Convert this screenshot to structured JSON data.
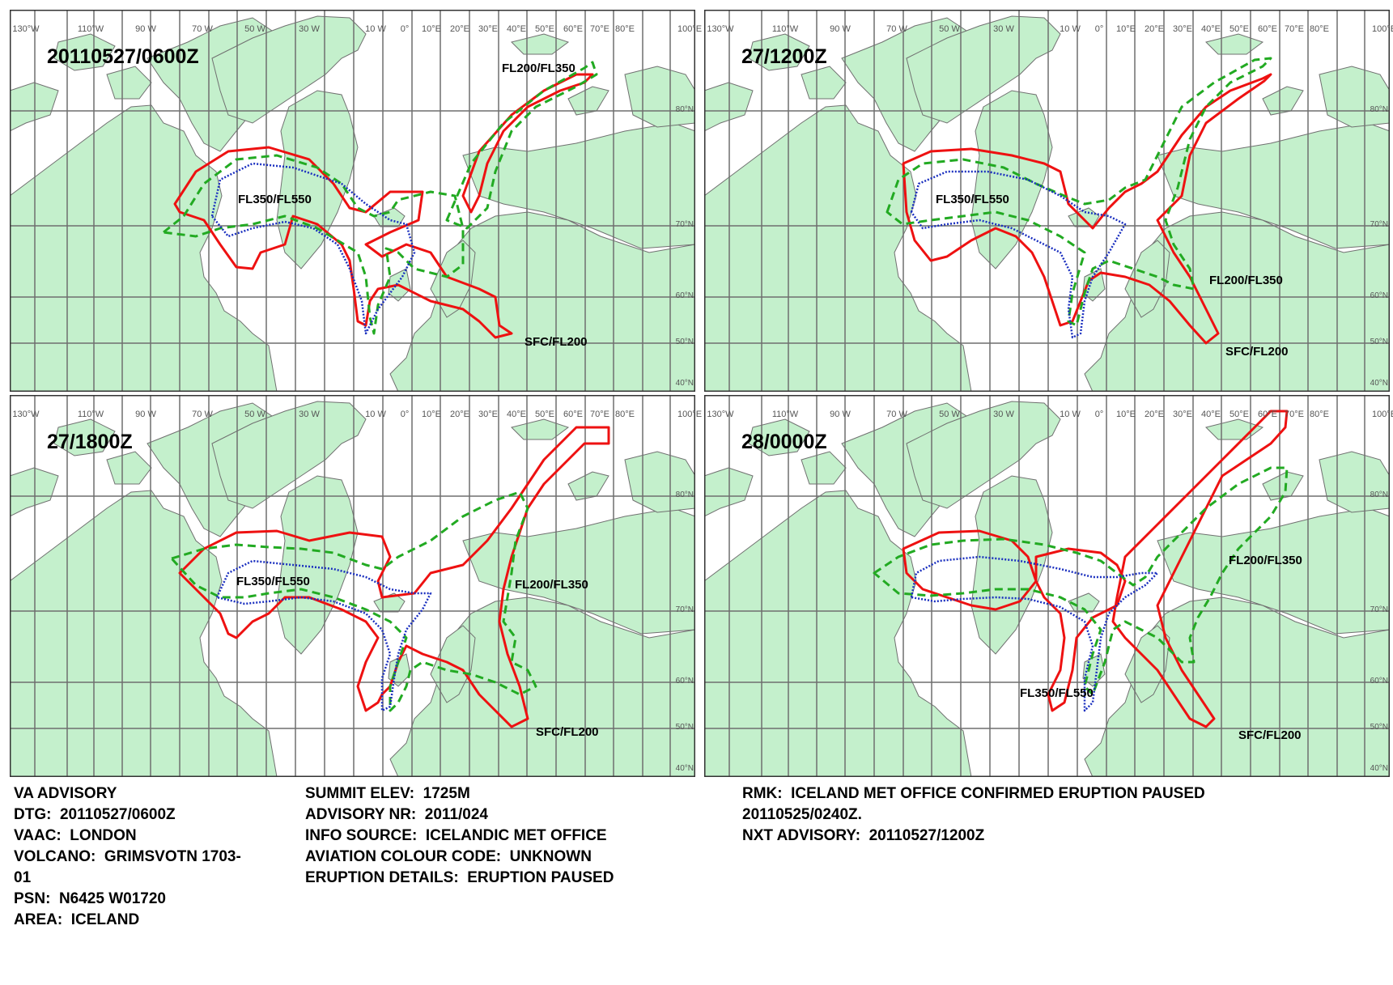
{
  "panels": [
    {
      "time": "20110527/0600Z",
      "labels": {
        "fl350_fl550": "FL350/FL550",
        "fl200_fl350": "FL200/FL350",
        "sfc_fl200": "SFC/FL200"
      }
    },
    {
      "time": "27/1200Z",
      "labels": {
        "fl350_fl550": "FL350/FL550",
        "fl200_fl350": "FL200/FL350",
        "sfc_fl200": "SFC/FL200"
      }
    },
    {
      "time": "27/1800Z",
      "labels": {
        "fl350_fl550": "FL350/FL550",
        "fl200_fl350": "FL200/FL350",
        "sfc_fl200": "SFC/FL200"
      }
    },
    {
      "time": "28/0000Z",
      "labels": {
        "fl350_fl550": "FL350/FL550",
        "fl200_fl350": "FL200/FL350",
        "sfc_fl200": "SFC/FL200"
      }
    }
  ],
  "longitude_labels": [
    "130°W",
    "110°W",
    "90 W",
    "70 W",
    "50 W",
    "30 W",
    "10 W",
    "0°",
    "10°E",
    "20°E",
    "30°E",
    "40°E",
    "50°E",
    "60°E",
    "70°E",
    "80°E",
    "100°E"
  ],
  "latitude_labels": [
    "80°N",
    "70°N",
    "60°N",
    "50°N",
    "40°N"
  ],
  "advisory": {
    "line1": "VA ADVISORY",
    "line2": "DTG:  20110527/0600Z",
    "line3": "VAAC:  LONDON",
    "line4": "VOLCANO:  GRIMSVOTN 1703-",
    "line5": "01",
    "line6": "PSN:  N6425 W01720",
    "line7": "AREA:  ICELAND"
  },
  "details": {
    "line1": "SUMMIT ELEV:  1725M",
    "line2": "ADVISORY NR:  2011/024",
    "line3": "INFO SOURCE:  ICELANDIC MET OFFICE",
    "line4": "AVIATION COLOUR CODE:  UNKNOWN",
    "line5": "ERUPTION DETAILS:  ERUPTION PAUSED"
  },
  "remarks": {
    "line1": "RMK:  ICELAND MET OFFICE CONFIRMED ERUPTION PAUSED",
    "line2": "20110525/0240Z.",
    "line3": "NXT ADVISORY:  20110527/1200Z"
  },
  "colors": {
    "land": "#c4f0cc",
    "coast": "#707070",
    "grid": "#6f6f6f",
    "sfc_fl200": "#ee1111",
    "fl200_fl350": "#22aa22",
    "fl350_fl550": "#1a2fbf"
  }
}
